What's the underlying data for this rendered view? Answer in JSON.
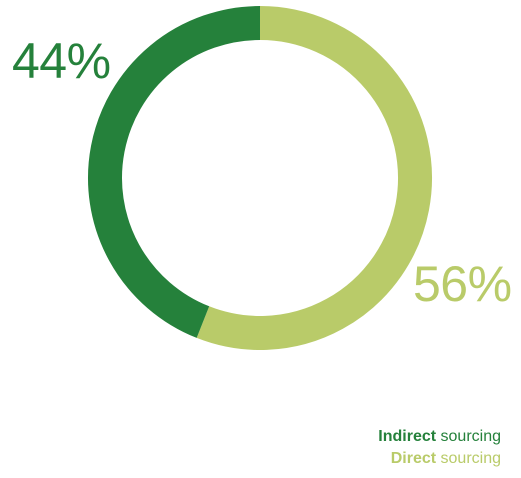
{
  "chart_data": {
    "type": "pie",
    "variant": "donut",
    "title": "",
    "series": [
      {
        "name": "Indirect sourcing",
        "name_bold": "Indirect",
        "name_rest": " sourcing",
        "value": 44,
        "label": "44%",
        "color": "#25813B"
      },
      {
        "name": "Direct sourcing",
        "name_bold": "Direct",
        "name_rest": " sourcing",
        "value": 56,
        "label": "56%",
        "color": "#B9CB69"
      }
    ],
    "legend_position": "bottom-right",
    "start_angle_deg": 0,
    "direction": "clockwise-from-top, Direct first"
  }
}
